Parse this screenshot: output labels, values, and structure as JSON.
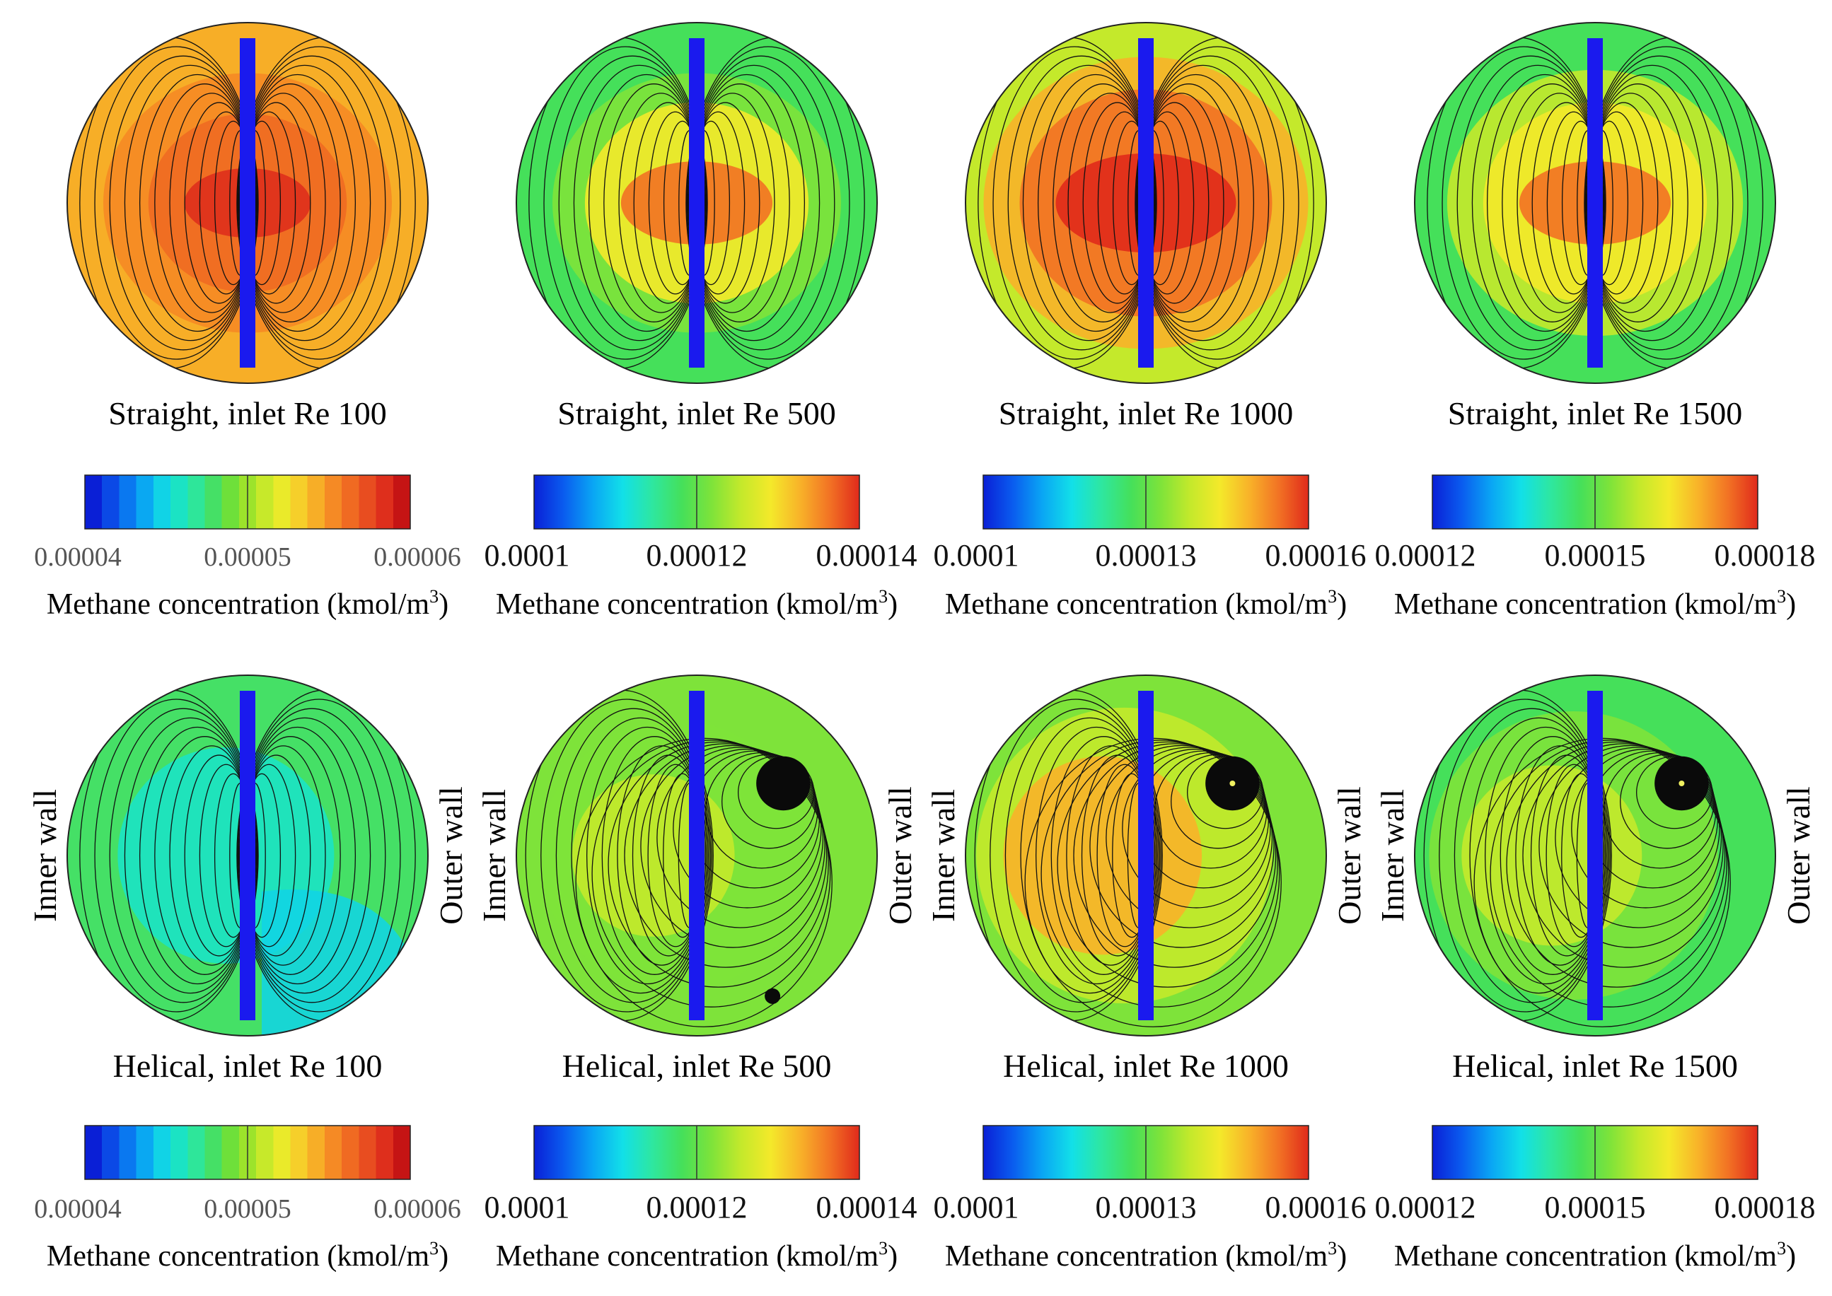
{
  "figure": {
    "palettes": {
      "stepped": [
        "#0a1fd6",
        "#0b49e6",
        "#0a78f0",
        "#0aa8f2",
        "#11d3e6",
        "#1be3c4",
        "#2ee69a",
        "#45e066",
        "#6ee03a",
        "#9ce32b",
        "#c7e92a",
        "#eaea2a",
        "#f6cf2a",
        "#f7ae27",
        "#f58a25",
        "#f06a22",
        "#e84d20",
        "#de2f1c",
        "#c51414"
      ],
      "smooth": [
        "#0a1fd6",
        "#0a5cef",
        "#0aa6f4",
        "#12e0e8",
        "#2ee7a0",
        "#45e05a",
        "#7ee33a",
        "#c4e92b",
        "#f4e92a",
        "#f8b229",
        "#f27224",
        "#e02a1b"
      ]
    },
    "colors": {
      "centre_divider": "#1a1aee",
      "streamline": "#111111",
      "rim": "#222222"
    }
  },
  "chart_data": [
    {
      "type": "heatmap",
      "row": "straight",
      "title": "Straight, inlet Re 100",
      "colorbar": {
        "ticks": [
          "0.00004",
          "0.00005",
          "0.00006"
        ],
        "range": [
          4e-05,
          6e-05
        ],
        "style": "stepped",
        "label_prefix": "Methane concentration (kmol/m",
        "label_exp": "3",
        "label_suffix": ")"
      },
      "levels": {
        "background": 0.7,
        "bands": [
          {
            "r": 0.8,
            "v": 0.78
          },
          {
            "r": 0.55,
            "v": 0.85
          },
          {
            "r": 0.35,
            "v": 0.92
          }
        ]
      },
      "side_labels": null,
      "vortex": null
    },
    {
      "type": "heatmap",
      "row": "straight",
      "title": "Straight, inlet Re 500",
      "colorbar": {
        "ticks": [
          "0.0001",
          "0.00012",
          "0.00014"
        ],
        "range": [
          0.0001,
          0.00014
        ],
        "style": "smooth",
        "label_prefix": "Methane concentration (kmol/m",
        "label_exp": "3",
        "label_suffix": ")"
      },
      "levels": {
        "background": 0.45,
        "bands": [
          {
            "r": 0.8,
            "v": 0.58
          },
          {
            "r": 0.62,
            "v": 0.75
          },
          {
            "r": 0.42,
            "v": 0.88
          }
        ]
      },
      "side_labels": null,
      "vortex": null
    },
    {
      "type": "heatmap",
      "row": "straight",
      "title": "Straight, inlet Re 1000",
      "colorbar": {
        "ticks": [
          "0.0001",
          "0.00013",
          "0.00016"
        ],
        "range": [
          0.0001,
          0.00016
        ],
        "style": "smooth",
        "label_prefix": "Methane concentration (kmol/m",
        "label_exp": "3",
        "label_suffix": ")"
      },
      "levels": {
        "background": 0.6,
        "bands": [
          {
            "r": 0.9,
            "v": 0.8
          },
          {
            "r": 0.7,
            "v": 0.9
          },
          {
            "r": 0.5,
            "v": 0.96
          }
        ]
      },
      "side_labels": null,
      "vortex": null
    },
    {
      "type": "heatmap",
      "row": "straight",
      "title": "Straight, inlet Re 1500",
      "colorbar": {
        "ticks": [
          "0.00012",
          "0.00015",
          "0.00018"
        ],
        "range": [
          0.00012,
          0.00018
        ],
        "style": "smooth",
        "label_prefix": "Methane concentration (kmol/m",
        "label_exp": "3",
        "label_suffix": ")"
      },
      "levels": {
        "background": 0.42,
        "bands": [
          {
            "r": 0.82,
            "v": 0.6
          },
          {
            "r": 0.62,
            "v": 0.76
          },
          {
            "r": 0.42,
            "v": 0.88
          }
        ]
      },
      "side_labels": null,
      "vortex": null
    },
    {
      "type": "heatmap",
      "row": "helical",
      "title": "Helical, inlet Re 100",
      "colorbar": {
        "ticks": [
          "0.00004",
          "0.00005",
          "0.00006"
        ],
        "range": [
          4e-05,
          6e-05
        ],
        "style": "stepped",
        "label_prefix": "Methane concentration (kmol/m",
        "label_exp": "3",
        "label_suffix": ")"
      },
      "levels": {
        "background": 0.4,
        "bands": [
          {
            "r": 0.6,
            "v": 0.3
          }
        ]
      },
      "side_labels": {
        "inner": "Inner wall",
        "outer": "Outer wall"
      },
      "vortex": null
    },
    {
      "type": "heatmap",
      "row": "helical",
      "title": "Helical, inlet Re 500",
      "colorbar": {
        "ticks": [
          "0.0001",
          "0.00012",
          "0.00014"
        ],
        "range": [
          0.0001,
          0.00014
        ],
        "style": "smooth",
        "label_prefix": "Methane concentration (kmol/m",
        "label_exp": "3",
        "label_suffix": ")"
      },
      "levels": {
        "background": 0.5,
        "bands": [
          {
            "r": 0.75,
            "v": 0.58
          },
          {
            "r": 0.45,
            "v": 0.64
          }
        ]
      },
      "side_labels": {
        "inner": "Inner wall",
        "outer": "Outer wall"
      },
      "vortex": {
        "main": "upper-right",
        "secondary": "lower-right"
      }
    },
    {
      "type": "heatmap",
      "row": "helical",
      "title": "Helical, inlet Re 1000",
      "colorbar": {
        "ticks": [
          "0.0001",
          "0.00013",
          "0.00016"
        ],
        "range": [
          0.0001,
          0.00016
        ],
        "style": "smooth",
        "label_prefix": "Methane concentration (kmol/m",
        "label_exp": "3",
        "label_suffix": ")"
      },
      "levels": {
        "background": 0.55,
        "bands": [
          {
            "r": 0.82,
            "v": 0.68
          },
          {
            "r": 0.55,
            "v": 0.78
          }
        ]
      },
      "side_labels": {
        "inner": "Inner wall",
        "outer": "Outer wall"
      },
      "vortex": {
        "main": "upper-right",
        "secondary": null
      }
    },
    {
      "type": "heatmap",
      "row": "helical",
      "title": "Helical, inlet Re 1500",
      "colorbar": {
        "ticks": [
          "0.00012",
          "0.00015",
          "0.00018"
        ],
        "range": [
          0.00012,
          0.00018
        ],
        "style": "smooth",
        "label_prefix": "Methane concentration (kmol/m",
        "label_exp": "3",
        "label_suffix": ")"
      },
      "levels": {
        "background": 0.46,
        "bands": [
          {
            "r": 0.8,
            "v": 0.56
          },
          {
            "r": 0.5,
            "v": 0.66
          }
        ]
      },
      "side_labels": {
        "inner": "Inner wall",
        "outer": "Outer wall"
      },
      "vortex": {
        "main": "upper-right",
        "secondary": null
      }
    }
  ]
}
